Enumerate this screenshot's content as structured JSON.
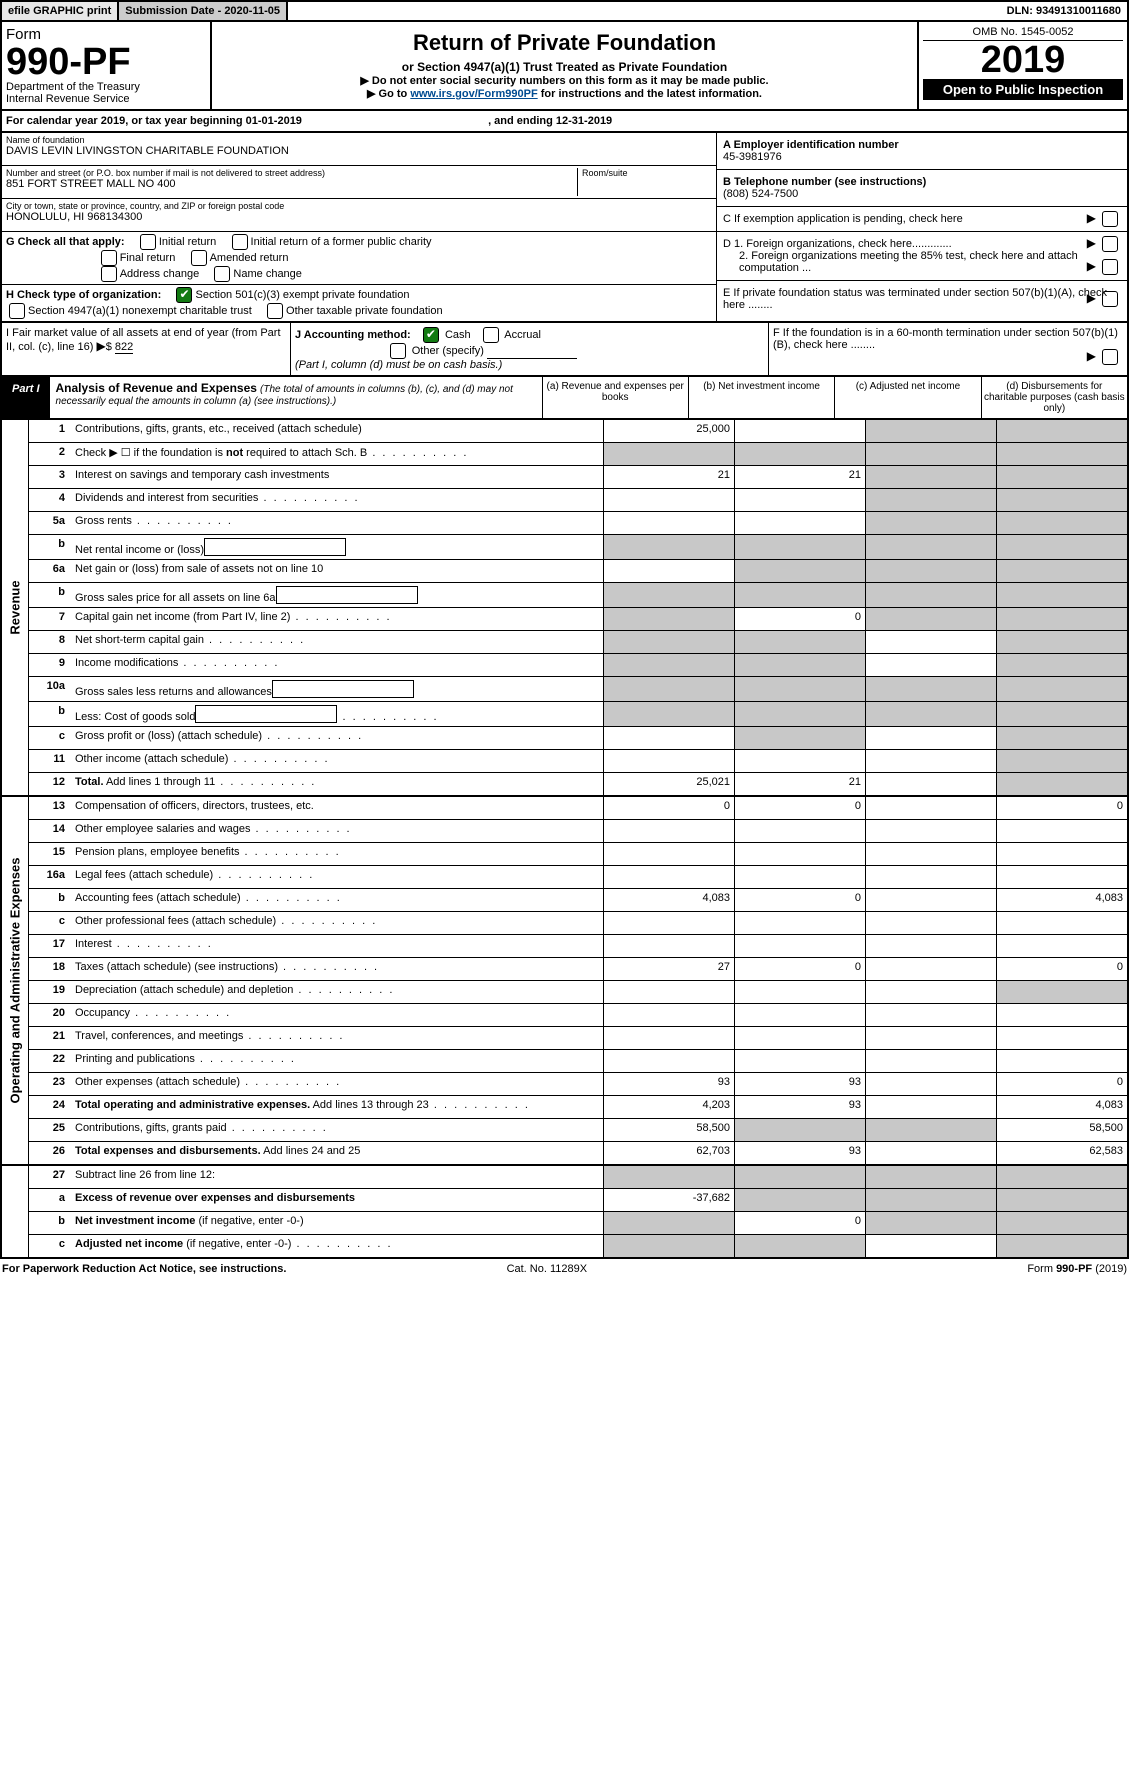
{
  "topbar": {
    "efile": "efile GRAPHIC print",
    "submission": "Submission Date - 2020-11-05",
    "dln": "DLN: 93491310011680"
  },
  "header": {
    "form_word": "Form",
    "form_no": "990-PF",
    "dept1": "Department of the Treasury",
    "dept2": "Internal Revenue Service",
    "title": "Return of Private Foundation",
    "subtitle": "or Section 4947(a)(1) Trust Treated as Private Foundation",
    "warn": "▶ Do not enter social security numbers on this form as it may be made public.",
    "goto_pre": "▶ Go to ",
    "goto_link": "www.irs.gov/Form990PF",
    "goto_post": " for instructions and the latest information.",
    "omb": "OMB No. 1545-0052",
    "year": "2019",
    "open": "Open to Public Inspection"
  },
  "calendar": {
    "pre": "For calendar year 2019, or tax year beginning ",
    "begin": "01-01-2019",
    "mid": " , and ending ",
    "end": "12-31-2019"
  },
  "foundation": {
    "name_lbl": "Name of foundation",
    "name": "DAVIS LEVIN LIVINGSTON CHARITABLE FOUNDATION",
    "street_lbl": "Number and street (or P.O. box number if mail is not delivered to street address)",
    "street": "851 FORT STREET MALL NO 400",
    "room_lbl": "Room/suite",
    "city_lbl": "City or town, state or province, country, and ZIP or foreign postal code",
    "city": "HONOLULU, HI  968134300",
    "ein_lbl": "A Employer identification number",
    "ein": "45-3981976",
    "phone_lbl": "B Telephone number (see instructions)",
    "phone": "(808) 524-7500",
    "c_lbl": "C If exemption application is pending, check here",
    "d1": "D 1. Foreign organizations, check here.............",
    "d2": "2. Foreign organizations meeting the 85% test, check here and attach computation ...",
    "e_lbl": "E  If private foundation status was terminated under section 507(b)(1)(A), check here ........",
    "f_lbl": "F  If the foundation is in a 60-month termination under section 507(b)(1)(B), check here ........"
  },
  "gblock": {
    "lbl": "G Check all that apply:",
    "opts": [
      "Initial return",
      "Initial return of a former public charity",
      "Final return",
      "Amended return",
      "Address change",
      "Name change"
    ]
  },
  "hblock": {
    "lbl": "H Check type of organization:",
    "opt1": "Section 501(c)(3) exempt private foundation",
    "opt2": "Section 4947(a)(1) nonexempt charitable trust",
    "opt3": "Other taxable private foundation"
  },
  "iblock": {
    "lbl": "I Fair market value of all assets at end of year (from Part II, col. (c), line 16)",
    "val": "822"
  },
  "jblock": {
    "lbl": "J Accounting method:",
    "cash": "Cash",
    "accr": "Accrual",
    "other": "Other (specify)",
    "note": "(Part I, column (d) must be on cash basis.)"
  },
  "part1": {
    "tab": "Part I",
    "title": "Analysis of Revenue and Expenses",
    "sub": "(The total of amounts in columns (b), (c), and (d) may not necessarily equal the amounts in column (a) (see instructions).)",
    "colA": "(a)   Revenue and expenses per books",
    "colB": "(b)  Net investment income",
    "colC": "(c)  Adjusted net income",
    "colD": "(d)  Disbursements for charitable purposes (cash basis only)"
  },
  "sections": {
    "rev": "Revenue",
    "exp": "Operating and Administrative Expenses"
  },
  "lines": {
    "l1": {
      "n": "1",
      "d": "Contributions, gifts, grants, etc., received (attach schedule)",
      "a": "25,000"
    },
    "l2": {
      "n": "2",
      "d": "Check ▶ ☐ if the foundation is <b>not</b> required to attach Sch. B"
    },
    "l3": {
      "n": "3",
      "d": "Interest on savings and temporary cash investments",
      "a": "21",
      "b": "21"
    },
    "l4": {
      "n": "4",
      "d": "Dividends and interest from securities"
    },
    "l5a": {
      "n": "5a",
      "d": "Gross rents"
    },
    "l5b": {
      "n": "b",
      "d": "Net rental income or (loss)"
    },
    "l6a": {
      "n": "6a",
      "d": "Net gain or (loss) from sale of assets not on line 10"
    },
    "l6b": {
      "n": "b",
      "d": "Gross sales price for all assets on line 6a"
    },
    "l7": {
      "n": "7",
      "d": "Capital gain net income (from Part IV, line 2)",
      "b": "0"
    },
    "l8": {
      "n": "8",
      "d": "Net short-term capital gain"
    },
    "l9": {
      "n": "9",
      "d": "Income modifications"
    },
    "l10a": {
      "n": "10a",
      "d": "Gross sales less returns and allowances"
    },
    "l10b": {
      "n": "b",
      "d": "Less: Cost of goods sold"
    },
    "l10c": {
      "n": "c",
      "d": "Gross profit or (loss) (attach schedule)"
    },
    "l11": {
      "n": "11",
      "d": "Other income (attach schedule)"
    },
    "l12": {
      "n": "12",
      "d": "<b>Total.</b> Add lines 1 through 11",
      "a": "25,021",
      "b": "21"
    },
    "l13": {
      "n": "13",
      "d": "Compensation of officers, directors, trustees, etc.",
      "a": "0",
      "b": "0",
      "dd": "0"
    },
    "l14": {
      "n": "14",
      "d": "Other employee salaries and wages"
    },
    "l15": {
      "n": "15",
      "d": "Pension plans, employee benefits"
    },
    "l16a": {
      "n": "16a",
      "d": "Legal fees (attach schedule)"
    },
    "l16b": {
      "n": "b",
      "d": "Accounting fees (attach schedule)",
      "a": "4,083",
      "b": "0",
      "dd": "4,083"
    },
    "l16c": {
      "n": "c",
      "d": "Other professional fees (attach schedule)"
    },
    "l17": {
      "n": "17",
      "d": "Interest"
    },
    "l18": {
      "n": "18",
      "d": "Taxes (attach schedule) (see instructions)",
      "a": "27",
      "b": "0",
      "dd": "0"
    },
    "l19": {
      "n": "19",
      "d": "Depreciation (attach schedule) and depletion"
    },
    "l20": {
      "n": "20",
      "d": "Occupancy"
    },
    "l21": {
      "n": "21",
      "d": "Travel, conferences, and meetings"
    },
    "l22": {
      "n": "22",
      "d": "Printing and publications"
    },
    "l23": {
      "n": "23",
      "d": "Other expenses (attach schedule)",
      "a": "93",
      "b": "93",
      "dd": "0"
    },
    "l24": {
      "n": "24",
      "d": "<b>Total operating and administrative expenses.</b> Add lines 13 through 23",
      "a": "4,203",
      "b": "93",
      "dd": "4,083"
    },
    "l25": {
      "n": "25",
      "d": "Contributions, gifts, grants paid",
      "a": "58,500",
      "dd": "58,500"
    },
    "l26": {
      "n": "26",
      "d": "<b>Total expenses and disbursements.</b> Add lines 24 and 25",
      "a": "62,703",
      "b": "93",
      "dd": "62,583"
    },
    "l27": {
      "n": "27",
      "d": "Subtract line 26 from line 12:"
    },
    "l27a": {
      "n": "a",
      "d": "<b>Excess of revenue over expenses and disbursements</b>",
      "a": "-37,682"
    },
    "l27b": {
      "n": "b",
      "d": "<b>Net investment income</b> (if negative, enter -0-)",
      "b": "0"
    },
    "l27c": {
      "n": "c",
      "d": "<b>Adjusted net income</b> (if negative, enter -0-)"
    }
  },
  "footer": {
    "left": "For Paperwork Reduction Act Notice, see instructions.",
    "mid": "Cat. No. 11289X",
    "right": "Form 990-PF (2019)"
  },
  "colors": {
    "shade": "#c8c8c8",
    "checkgreen": "#127a12",
    "link": "#004b91"
  }
}
